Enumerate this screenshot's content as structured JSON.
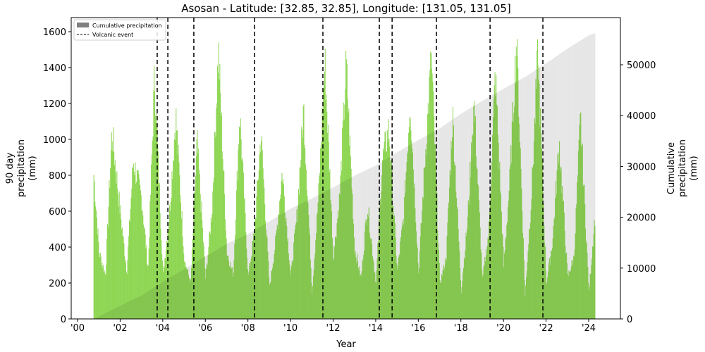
{
  "chart_data": {
    "type": "bar",
    "title": "Asosan - Latitude: [32.85, 32.85], Longitude: [131.05, 131.05]",
    "xlabel": "Year",
    "ylabel": "90 day\nprecipitation\n(mm)",
    "ylabel_right": "Cumulative\nprecipitation\n(mm)",
    "xlim": [
      1999.7,
      2025.5
    ],
    "ylim": [
      0,
      1680
    ],
    "ylim_right": [
      0,
      59300
    ],
    "x_ticks": [
      2000,
      2002,
      2004,
      2006,
      2008,
      2010,
      2012,
      2014,
      2016,
      2018,
      2020,
      2022,
      2024
    ],
    "x_tick_labels": [
      "'00",
      "'02",
      "'04",
      "'06",
      "'08",
      "'10",
      "'12",
      "'14",
      "'16",
      "'18",
      "'20",
      "'22",
      "'24"
    ],
    "y_ticks": [
      0,
      200,
      400,
      600,
      800,
      1000,
      1200,
      1400,
      1600
    ],
    "y_ticks_right": [
      0,
      10000,
      20000,
      30000,
      40000,
      50000
    ],
    "grid": false,
    "legend": {
      "position": "upper left",
      "entries": [
        {
          "label": "Cumulative precipitation",
          "style": "patch",
          "color": "#808080"
        },
        {
          "label": "Volcanic event",
          "style": "dashed-line",
          "color": "#000000"
        }
      ]
    },
    "series": [
      {
        "name": "90 day precipitation",
        "axis": "left",
        "color": "#88d44a",
        "note": "seasonal peaks (approx. from image)",
        "x": [
          2000.75,
          2001.0,
          2001.3,
          2001.6,
          2002.0,
          2002.3,
          2002.6,
          2003.0,
          2003.3,
          2003.6,
          2004.0,
          2004.3,
          2004.6,
          2005.0,
          2005.3,
          2005.6,
          2006.0,
          2006.3,
          2006.6,
          2007.0,
          2007.3,
          2007.6,
          2008.0,
          2008.3,
          2008.6,
          2009.0,
          2009.3,
          2009.6,
          2010.0,
          2010.3,
          2010.6,
          2011.0,
          2011.3,
          2011.6,
          2012.0,
          2012.3,
          2012.6,
          2013.0,
          2013.3,
          2013.6,
          2014.0,
          2014.3,
          2014.6,
          2015.0,
          2015.3,
          2015.6,
          2016.0,
          2016.3,
          2016.6,
          2017.0,
          2017.3,
          2017.6,
          2018.0,
          2018.3,
          2018.6,
          2019.0,
          2019.3,
          2019.6,
          2020.0,
          2020.3,
          2020.6,
          2021.0,
          2021.3,
          2021.6,
          2022.0,
          2022.3,
          2022.6,
          2023.0,
          2023.3,
          2023.6,
          2024.0,
          2024.3
        ],
        "values": [
          820,
          380,
          250,
          1070,
          600,
          270,
          900,
          680,
          280,
          1390,
          250,
          600,
          1160,
          340,
          200,
          1010,
          230,
          620,
          1530,
          380,
          250,
          1180,
          240,
          500,
          1060,
          180,
          450,
          840,
          240,
          600,
          1200,
          150,
          700,
          1460,
          350,
          700,
          1450,
          400,
          230,
          650,
          200,
          900,
          1080,
          270,
          580,
          1250,
          260,
          900,
          1500,
          200,
          350,
          1160,
          160,
          550,
          1230,
          220,
          500,
          1400,
          300,
          820,
          1600,
          130,
          700,
          1510,
          200,
          450,
          1010,
          240,
          350,
          1140,
          150,
          620
        ]
      },
      {
        "name": "Cumulative precipitation",
        "axis": "right",
        "color": "#e6e6e6",
        "x": [
          2000.75,
          2002,
          2003,
          2004,
          2005,
          2006,
          2007,
          2008,
          2009,
          2010,
          2011,
          2012,
          2013,
          2014,
          2015,
          2016,
          2017,
          2018,
          2019,
          2020,
          2021,
          2022,
          2023,
          2024,
          2024.3
        ],
        "values": [
          0,
          2600,
          4600,
          7300,
          9800,
          12300,
          14800,
          16700,
          19200,
          21700,
          23700,
          25900,
          28200,
          30200,
          32800,
          35200,
          37500,
          40400,
          42900,
          45300,
          47600,
          50300,
          53200,
          55800,
          56200
        ]
      }
    ],
    "volcanic_events": [
      2003.74,
      2004.24,
      2005.46,
      2008.31,
      2011.52,
      2014.17,
      2014.77,
      2016.85,
      2019.37,
      2021.85
    ]
  },
  "legend": {
    "cumulative_label": "Cumulative precipitation",
    "volcanic_label": "Volcanic event"
  },
  "axes": {
    "title": "Asosan - Latitude: [32.85, 32.85], Longitude: [131.05, 131.05]",
    "xlabel": "Year",
    "ylabel_lines": [
      "90 day",
      "precipitation",
      "(mm)"
    ],
    "ylabel_right_lines": [
      "Cumulative",
      "precipitation",
      "(mm)"
    ]
  }
}
